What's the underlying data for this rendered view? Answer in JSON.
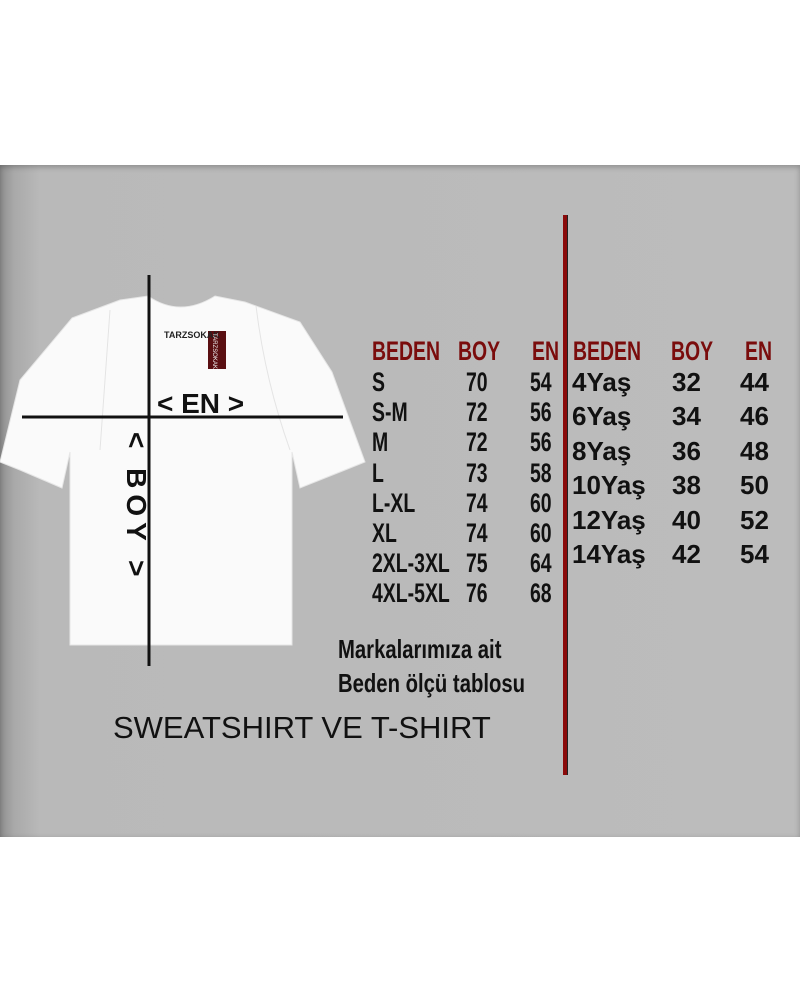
{
  "shirt": {
    "brand_label": "TARZSOKAK",
    "tag_label": "TARZSOKAK",
    "width_label": "< EN >",
    "length_label": "< BOY >"
  },
  "adult_table": {
    "headers": [
      "BEDEN",
      "BOY",
      "EN"
    ],
    "rows": [
      [
        "S",
        "70",
        "54"
      ],
      [
        "S-M",
        "72",
        "56"
      ],
      [
        "M",
        "72",
        "56"
      ],
      [
        "L",
        "73",
        "58"
      ],
      [
        "L-XL",
        "74",
        "60"
      ],
      [
        "XL",
        "74",
        "60"
      ],
      [
        "2XL-3XL",
        "75",
        "64"
      ],
      [
        "4XL-5XL",
        "76",
        "68"
      ]
    ]
  },
  "kids_table": {
    "headers": [
      "BEDEN",
      "BOY",
      "EN"
    ],
    "rows": [
      [
        "4Yaş",
        "32",
        "44"
      ],
      [
        "6Yaş",
        "34",
        "46"
      ],
      [
        "8Yaş",
        "36",
        "48"
      ],
      [
        "10Yaş",
        "38",
        "50"
      ],
      [
        "12Yaş",
        "40",
        "52"
      ],
      [
        "14Yaş",
        "42",
        "54"
      ]
    ]
  },
  "note_line1": "Markalarımıza ait",
  "note_line2": "Beden ölçü tablosu",
  "caption": "SWEATSHIRT VE T-SHIRT",
  "colors": {
    "header": "#7a0c0c",
    "divider": "#8a0a0a",
    "background": "#bcbcbc"
  }
}
